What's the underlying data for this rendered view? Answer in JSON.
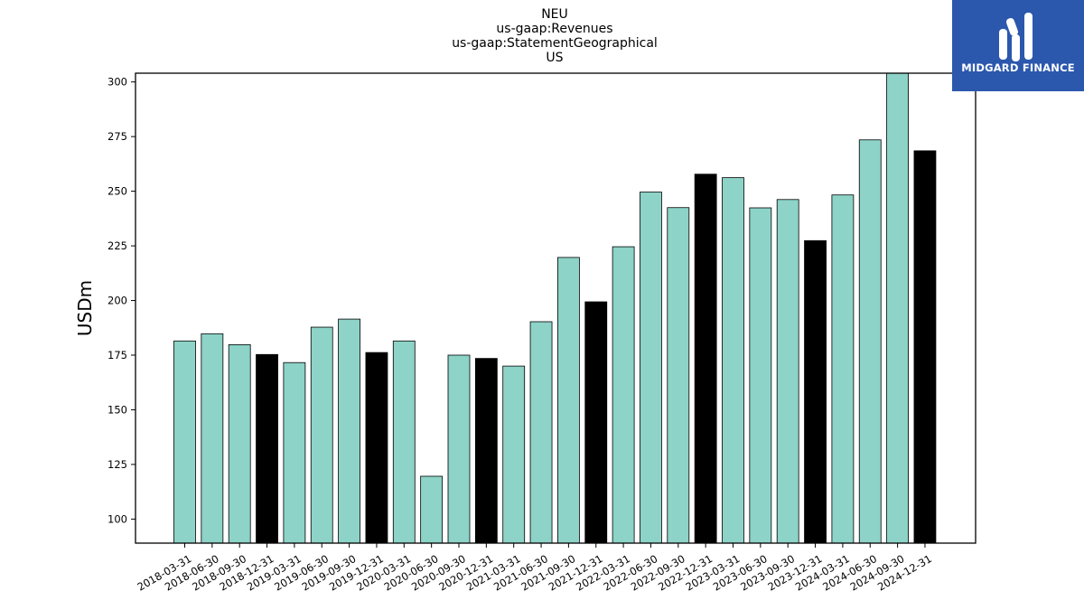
{
  "chart_data": {
    "type": "bar",
    "title_lines": [
      "NEU",
      "us-gaap:Revenues",
      "us-gaap:StatementGeographical",
      "US"
    ],
    "ylabel": "USDm",
    "xlabel": "",
    "ylim": [
      89,
      304
    ],
    "yticks": [
      100,
      125,
      150,
      175,
      200,
      225,
      250,
      275,
      300
    ],
    "grid": false,
    "colors": {
      "quarter": "#8dd3c7",
      "year_end": "#000000",
      "edge": "#000000"
    },
    "categories": [
      "2018-03-31",
      "2018-06-30",
      "2018-09-30",
      "2018-12-31",
      "2019-03-31",
      "2019-06-30",
      "2019-09-30",
      "2019-12-31",
      "2020-03-31",
      "2020-06-30",
      "2020-09-30",
      "2020-12-31",
      "2021-03-31",
      "2021-06-30",
      "2021-09-30",
      "2021-12-31",
      "2022-03-31",
      "2022-06-30",
      "2022-09-30",
      "2022-12-31",
      "2023-03-31",
      "2023-06-30",
      "2023-09-30",
      "2023-12-31",
      "2024-03-31",
      "2024-06-30",
      "2024-09-30",
      "2024-12-31"
    ],
    "values": [
      181.5,
      184.8,
      179.8,
      175.3,
      171.6,
      187.8,
      191.5,
      176.2,
      181.5,
      119.6,
      175.0,
      173.5,
      170.0,
      190.3,
      219.7,
      199.4,
      224.6,
      249.6,
      242.5,
      257.8,
      256.2,
      242.4,
      246.2,
      227.4,
      248.3,
      273.5,
      305.0,
      268.5
    ]
  },
  "logo": {
    "text": "MIDGARD FINANCE",
    "icon": "midgard-logo-icon"
  }
}
